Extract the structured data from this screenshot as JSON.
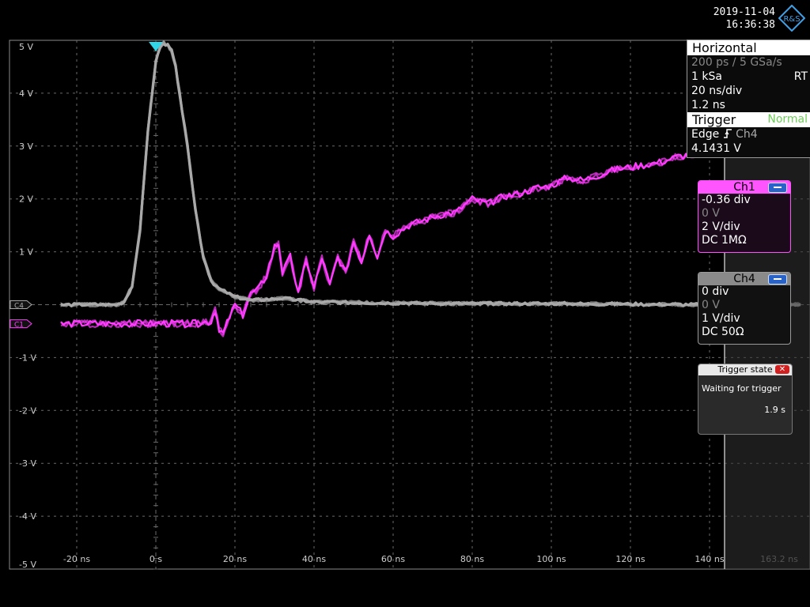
{
  "datetime": {
    "date": "2019-11-04",
    "time": "16:36:38"
  },
  "logo": {
    "text": "R&S",
    "icon": "rohde-schwarz-diamond"
  },
  "horizontal": {
    "title": "Horizontal",
    "resolution": "200 ps / 5 GSa/s",
    "record_length": "1 kSa",
    "mode": "RT",
    "time_scale": "20 ns/div",
    "position": "1.2 ns"
  },
  "trigger": {
    "title": "Trigger",
    "mode": "Normal",
    "type": "Edge",
    "source": "Ch4",
    "level": "4.1431 V"
  },
  "ch1": {
    "name": "Ch1",
    "offset_div": "-0.36 div",
    "offset_v": "0 V",
    "scale": "2 V/div",
    "coupling": "DC 1MΩ"
  },
  "ch4": {
    "name": "Ch4",
    "offset_div": "0 div",
    "offset_v": "0 V",
    "scale": "1 V/div",
    "coupling": "DC 50Ω"
  },
  "trigger_state": {
    "title": "Trigger state",
    "message": "Waiting for trigger",
    "elapsed": "1.9 s"
  },
  "markers": {
    "ch1": "C1",
    "ch4": "C4"
  },
  "colors": {
    "ch1": "#ff3cff",
    "ch4": "#a9a9a9",
    "trigger_marker": "#30d6e8",
    "grid": "#6a6a6a"
  },
  "chart_data": {
    "type": "line",
    "x_unit": "ns",
    "y_unit": "V",
    "xlim": [
      -24,
      163.2
    ],
    "ylim": [
      -5,
      5
    ],
    "x_ticks": [
      "-20 ns",
      "0 s",
      "20 ns",
      "40 ns",
      "60 ns",
      "80 ns",
      "100 ns",
      "120 ns",
      "140 ns",
      "163.2 ns"
    ],
    "y_ticks": [
      "5 V",
      "4 V",
      "3 V",
      "2 V",
      "1 V",
      "-1 V",
      "-2 V",
      "-3 V",
      "-4 V",
      "-5 V"
    ],
    "grid": true,
    "series": [
      {
        "name": "Ch4",
        "x": [
          -24,
          -10,
          -8,
          -6,
          -4,
          -2,
          0,
          1,
          2,
          3,
          4,
          5,
          6,
          8,
          10,
          12,
          14,
          16,
          20,
          24,
          28,
          32,
          40,
          60,
          80,
          100,
          140,
          163
        ],
        "y": [
          0.0,
          0.0,
          0.05,
          0.35,
          1.4,
          3.3,
          4.6,
          4.85,
          4.95,
          4.9,
          4.8,
          4.5,
          4.0,
          3.0,
          1.8,
          0.9,
          0.45,
          0.3,
          0.15,
          0.08,
          0.1,
          0.12,
          0.05,
          0.03,
          0.02,
          0.02,
          0.0,
          0.0
        ]
      },
      {
        "name": "Ch1",
        "x": [
          -24,
          10,
          14,
          15,
          16,
          17,
          18,
          20,
          22,
          24,
          26,
          28,
          30,
          31,
          32,
          34,
          36,
          38,
          40,
          42,
          44,
          46,
          48,
          50,
          52,
          54,
          56,
          58,
          60,
          64,
          68,
          72,
          76,
          80,
          84,
          88,
          92,
          96,
          100,
          104,
          108,
          112,
          116,
          120,
          124,
          128,
          132,
          136,
          140,
          150,
          163
        ],
        "y": [
          -0.36,
          -0.36,
          -0.32,
          -0.1,
          -0.45,
          -0.55,
          -0.35,
          0.0,
          -0.2,
          0.2,
          0.3,
          0.55,
          1.1,
          1.15,
          0.6,
          0.9,
          0.2,
          0.85,
          0.3,
          0.9,
          0.35,
          0.9,
          0.6,
          1.2,
          0.8,
          1.35,
          0.9,
          1.4,
          1.3,
          1.5,
          1.6,
          1.7,
          1.75,
          2.0,
          1.9,
          2.05,
          2.1,
          2.2,
          2.25,
          2.4,
          2.35,
          2.45,
          2.55,
          2.6,
          2.65,
          2.7,
          2.8,
          2.85,
          2.9,
          3.1,
          3.2
        ]
      }
    ]
  }
}
